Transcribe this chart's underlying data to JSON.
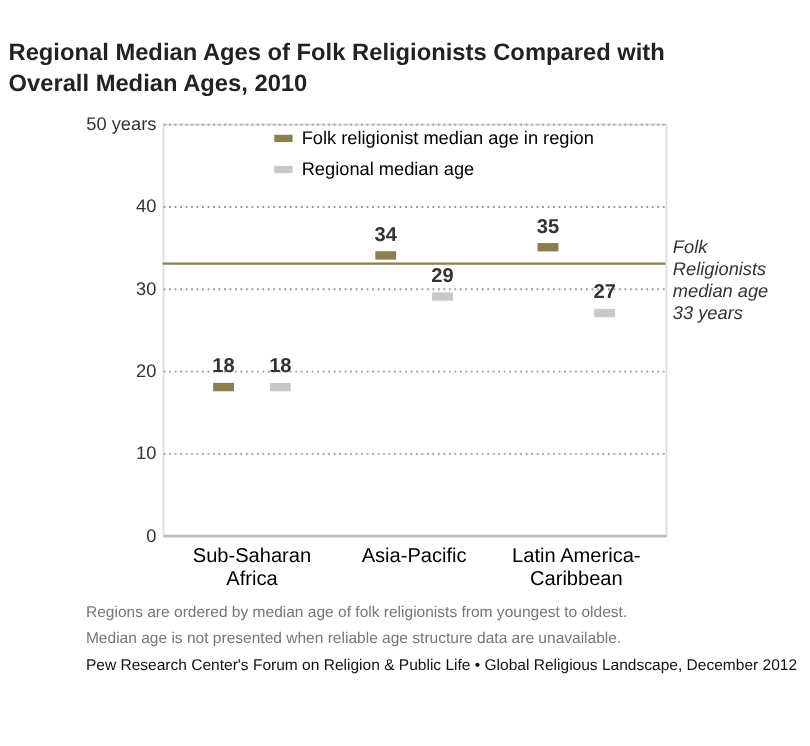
{
  "chart_data": {
    "type": "scatter",
    "title": "Regional Median Ages of Folk Religionists Compared with Overall Median Ages, 2010",
    "categories": [
      "Sub-Saharan Africa",
      "Asia-Pacific",
      "Latin America-Caribbean"
    ],
    "series": [
      {
        "name": "Folk religionist median age in region",
        "color": "#8c7f4e",
        "values": [
          18,
          34,
          35
        ]
      },
      {
        "name": "Regional median age",
        "color": "#c8c8c8",
        "values": [
          18,
          29,
          27
        ]
      }
    ],
    "ylim": [
      0,
      50
    ],
    "yticks": [
      0,
      10,
      20,
      30,
      40,
      {
        "value": 50,
        "label": "50 years"
      }
    ],
    "ref_lines": [
      {
        "axis": "y",
        "value": 33,
        "label": "Folk Religionists median age 33 years",
        "color": "#8c7f4e"
      }
    ],
    "data_labels": true,
    "legend": "top left",
    "grid": "y",
    "annotations": [
      "Regions are ordered by median age of folk religionists from youngest to oldest.",
      "Median age is not presented when reliable age structure data are unavailable.",
      "Pew Research Center's Forum on Religion & Public Life • Global Religious Landscape, December 2012"
    ]
  }
}
